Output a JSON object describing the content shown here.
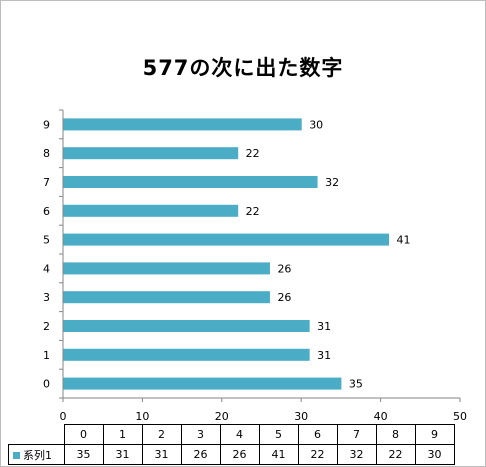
{
  "chart_data": {
    "type": "bar",
    "orientation": "horizontal",
    "title": "577の次に出た数字",
    "categories": [
      "0",
      "1",
      "2",
      "3",
      "4",
      "5",
      "6",
      "7",
      "8",
      "9"
    ],
    "series": [
      {
        "name": "系列1",
        "values": [
          35,
          31,
          31,
          26,
          26,
          41,
          22,
          32,
          22,
          30
        ],
        "color": "#4bacc6"
      }
    ],
    "xlim": [
      0,
      50
    ],
    "x_ticks": [
      "0",
      "10",
      "20",
      "30",
      "40",
      "50"
    ],
    "data_labels": true,
    "grid": false,
    "data_table": true
  }
}
